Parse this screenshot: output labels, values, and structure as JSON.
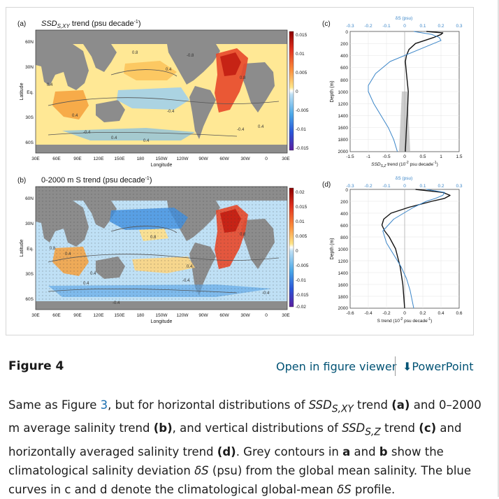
{
  "figure_label": "Figure 4",
  "actions": {
    "viewer": "Open in figure viewer",
    "powerpoint": "PowerPoint"
  },
  "caption": {
    "p1": "Same as Figure ",
    "ref": "3",
    "p2": ", but for horizontal distributions of ",
    "ssd_xy": "SSD",
    "sub_xy": "S,XY",
    "p3": " trend ",
    "a": "(a)",
    "p4": " and 0–2000 m average salinity trend ",
    "b": "(b)",
    "p5": ", and vertical distributions of ",
    "ssd_z": "SSD",
    "sub_z": "S,Z",
    "p6": " trend ",
    "c": "(c)",
    "p7": " and horizontally averaged salinity trend ",
    "d": "(d)",
    "p8": ". Grey contours in ",
    "a2": "a",
    "p9": " and ",
    "b2": "b",
    "p10": " show the climatological salinity deviation ",
    "ds": "δS",
    "p11": " (psu) from the global mean salinity. The blue curves in c and d denote the climatological global-mean ",
    "ds2": "δS",
    "p12": " profile."
  },
  "colors": {
    "land": "#8c8c8c",
    "warm": "#d7301f",
    "cool": "#4a90d9",
    "black_curve": "#111111",
    "blue_curve": "#3a85c8",
    "link": "#005274"
  },
  "panels": {
    "a": {
      "letter": "(a)",
      "title_base": "SSD",
      "title_sub": "S,XY",
      "title_rest": " trend (psu decade",
      "title_exp": "-1",
      "title_close": ")",
      "ylabel": "Latitude",
      "xlabel": "Longitude",
      "lat_ticks": [
        "60N",
        "30N",
        "Eq.",
        "30S",
        "60S"
      ],
      "lon_ticks": [
        "30E",
        "60E",
        "90E",
        "120E",
        "150E",
        "180",
        "150W",
        "120W",
        "90W",
        "60W",
        "30W",
        "0",
        "30E"
      ],
      "colorbar": [
        "0.015",
        "0.01",
        "0.005",
        "0",
        "-0.005",
        "-0.01",
        "-0.015"
      ],
      "contour_labels": [
        "0.4",
        "0.8",
        "-0.8",
        "0.4",
        "-0.4",
        "0.4",
        "0.8",
        "0.4",
        "-0.4",
        "0.4",
        "-0.4",
        "0.4"
      ]
    },
    "b": {
      "letter": "(b)",
      "title": "0-2000 m S trend (psu decade",
      "title_exp": "-1",
      "title_close": ")",
      "ylabel": "Latitude",
      "xlabel": "Longitude",
      "lat_ticks": [
        "60N",
        "30N",
        "Eq.",
        "30S",
        "60S"
      ],
      "lon_ticks": [
        "30E",
        "60E",
        "90E",
        "120E",
        "150E",
        "180",
        "150W",
        "120W",
        "90W",
        "60W",
        "30W",
        "0",
        "30E"
      ],
      "colorbar": [
        "0.02",
        "0.015",
        "0.01",
        "0.005",
        "0",
        "-0.005",
        "-0.01",
        "-0.015",
        "-0.02"
      ],
      "contour_labels": [
        "0.8",
        "0.4",
        "0.8",
        "0.4",
        "-0.4",
        "0.4",
        "-0.4",
        "0.4",
        "0.8",
        "-0.4"
      ]
    },
    "c": {
      "letter": "(c)",
      "top_title": "δS (psu)",
      "top_ticks": [
        "-0.3",
        "-0.2",
        "-0.1",
        "0",
        "0.1",
        "0.2",
        "0.3"
      ],
      "ylabel": "Depth (m)",
      "depth_ticks": [
        "0",
        "200",
        "400",
        "600",
        "800",
        "1000",
        "1200",
        "1400",
        "1600",
        "1800",
        "2000"
      ],
      "bottom_ticks": [
        "-1.5",
        "-1",
        "-0.5",
        "0",
        "0.5",
        "1",
        "1.5"
      ],
      "xlabel_base": "SSD",
      "xlabel_sub": "S,Z",
      "xlabel_rest": " trend (10",
      "xlabel_exp": "-2",
      "xlabel_close": " psu decade",
      "xlabel_exp2": "-1",
      "xlabel_end": ")"
    },
    "d": {
      "letter": "(d)",
      "top_title": "δS (psu)",
      "top_ticks": [
        "-0.3",
        "-0.2",
        "-0.1",
        "0",
        "0.1",
        "0.2",
        "0.3"
      ],
      "ylabel": "Depth (m)",
      "depth_ticks": [
        "0",
        "200",
        "400",
        "600",
        "800",
        "1000",
        "1200",
        "1400",
        "1600",
        "1800",
        "2000"
      ],
      "bottom_ticks": [
        "-0.6",
        "-0.4",
        "-0.2",
        "0",
        "0.2",
        "0.4",
        "0.6"
      ],
      "xlabel": "S trend (10",
      "xlabel_exp": "-2",
      "xlabel_close": " psu decade",
      "xlabel_exp2": "-1",
      "xlabel_end": ")"
    }
  },
  "chart_data": [
    {
      "type": "line",
      "panel": "c",
      "xlabel": "SSD S,Z trend (10^-2 psu decade^-1)",
      "top_xlabel": "δS (psu)",
      "ylabel": "Depth (m)",
      "xlim": [
        -1.5,
        1.5
      ],
      "top_xlim": [
        -0.3,
        0.3
      ],
      "ylim": [
        2000,
        0
      ],
      "series": [
        {
          "axis": "bottom",
          "depth": [
            0,
            25,
            50,
            100,
            150,
            200,
            300,
            400,
            500,
            700,
            1000,
            1300,
            1600,
            2000
          ],
          "values": [
            0.6,
            1.05,
            1.0,
            0.8,
            0.55,
            0.3,
            0.12,
            0.05,
            0.02,
            0.05,
            0.1,
            0.08,
            0.05,
            0.02
          ]
        },
        {
          "axis": "top",
          "depth": [
            0,
            50,
            100,
            150,
            200,
            300,
            500,
            700,
            900,
            1000,
            1200,
            1400,
            1600,
            1800,
            2000
          ],
          "values": [
            0.05,
            0.15,
            0.19,
            0.2,
            0.16,
            0.08,
            -0.08,
            -0.16,
            -0.2,
            -0.2,
            -0.17,
            -0.13,
            -0.09,
            -0.06,
            -0.04
          ]
        }
      ]
    },
    {
      "type": "line",
      "panel": "d",
      "xlabel": "S trend (10^-2 psu decade^-1)",
      "top_xlabel": "δS (psu)",
      "ylabel": "Depth (m)",
      "xlim": [
        -0.6,
        0.6
      ],
      "top_xlim": [
        -0.3,
        0.3
      ],
      "ylim": [
        2000,
        0
      ],
      "series": [
        {
          "axis": "bottom",
          "depth": [
            0,
            50,
            100,
            150,
            200,
            300,
            400,
            500,
            600,
            700,
            800,
            1000,
            1300,
            1600,
            2000
          ],
          "values": [
            0.12,
            0.42,
            0.5,
            0.44,
            0.3,
            0.05,
            -0.15,
            -0.23,
            -0.25,
            -0.22,
            -0.17,
            -0.1,
            -0.05,
            -0.02,
            0.0
          ]
        },
        {
          "axis": "top",
          "depth": [
            0,
            50,
            100,
            150,
            200,
            300,
            500,
            700,
            900,
            1100,
            1300,
            1500,
            1700,
            2000
          ],
          "values": [
            0.12,
            0.22,
            0.21,
            0.17,
            0.12,
            0.05,
            -0.06,
            -0.12,
            -0.1,
            -0.06,
            -0.02,
            0.01,
            0.03,
            0.05
          ]
        }
      ]
    }
  ]
}
